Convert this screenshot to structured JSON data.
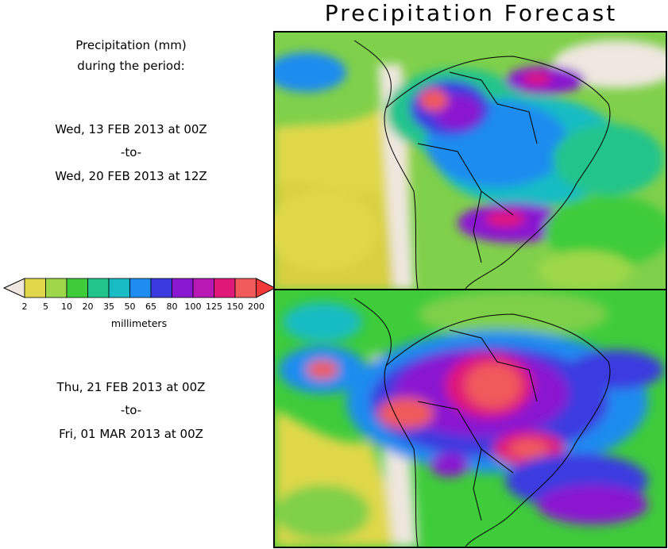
{
  "title": "Precipitation Forecast",
  "intro": {
    "line1": "Precipitation (mm)",
    "line2": "during the period:"
  },
  "period1": {
    "start": "Wed, 13 FEB 2013 at 00Z",
    "sep": "-to-",
    "end": "Wed, 20 FEB 2013 at 12Z"
  },
  "period2": {
    "start": "Thu, 21 FEB 2013 at 00Z",
    "sep": "-to-",
    "end": "Fri, 01 MAR 2013 at 00Z"
  },
  "colorbar": {
    "units": "millimeters",
    "levels": [
      "2",
      "5",
      "10",
      "20",
      "35",
      "50",
      "65",
      "80",
      "100",
      "125",
      "150",
      "200"
    ],
    "colors": [
      "#e0d84a",
      "#9ed84a",
      "#3ecc3a",
      "#22c48c",
      "#18bcc4",
      "#1e8cf0",
      "#3a3ae0",
      "#8a18d0",
      "#b818b4",
      "#e01878",
      "#f05a5a"
    ],
    "under_color": "#efe7e0",
    "over_color": "#f03a3a"
  }
}
